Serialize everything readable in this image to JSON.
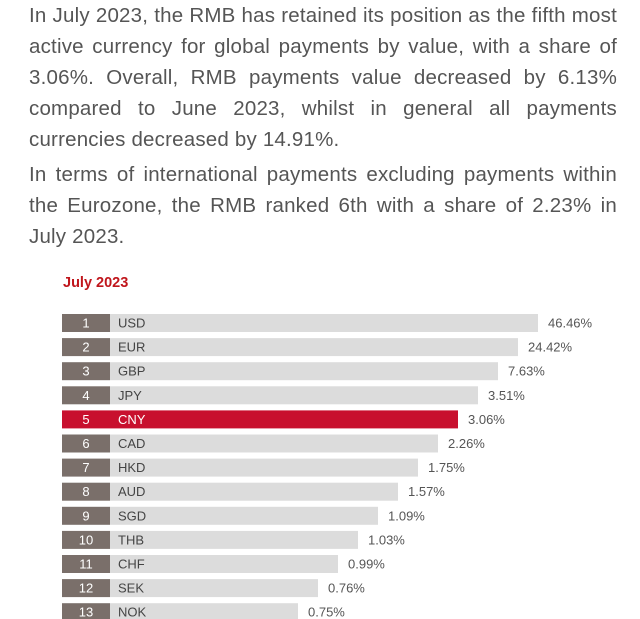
{
  "text": {
    "paragraph_1": "In July 2023, the RMB has retained its position as the fifth most active currency for global payments by value, with a share of 3.06%. Overall, RMB payments value decreased by 6.13% compared to June 2023, whilst in general all payments currencies decreased by 14.91%.",
    "paragraph_2": "In terms of international payments excluding payments within the Eurozone, the RMB ranked 6th with a share of 2.23% in July 2023."
  },
  "colors": {
    "rank_box": "#7a6f6a",
    "bar": "#dcdcdc",
    "highlight": "#c8102e",
    "title": "#c0161c"
  },
  "chart_data": {
    "type": "bar",
    "orientation": "horizontal",
    "title": "July 2023",
    "highlight_category": "CNY",
    "ranks": [
      "1",
      "2",
      "3",
      "4",
      "5",
      "6",
      "7",
      "8",
      "9",
      "10",
      "11",
      "12",
      "13"
    ],
    "categories": [
      "USD",
      "EUR",
      "GBP",
      "JPY",
      "CNY",
      "CAD",
      "HKD",
      "AUD",
      "SGD",
      "THB",
      "CHF",
      "SEK",
      "NOK"
    ],
    "values": [
      46.46,
      24.42,
      7.63,
      3.51,
      3.06,
      2.26,
      1.75,
      1.57,
      1.09,
      1.03,
      0.99,
      0.76,
      0.75
    ],
    "value_labels": [
      "46.46%",
      "24.42%",
      "7.63%",
      "3.51%",
      "3.06%",
      "2.26%",
      "1.75%",
      "1.57%",
      "1.09%",
      "1.03%",
      "0.99%",
      "0.76%",
      "0.75%"
    ],
    "xlabel": "",
    "ylabel": "",
    "grid": false,
    "legend": "none"
  }
}
